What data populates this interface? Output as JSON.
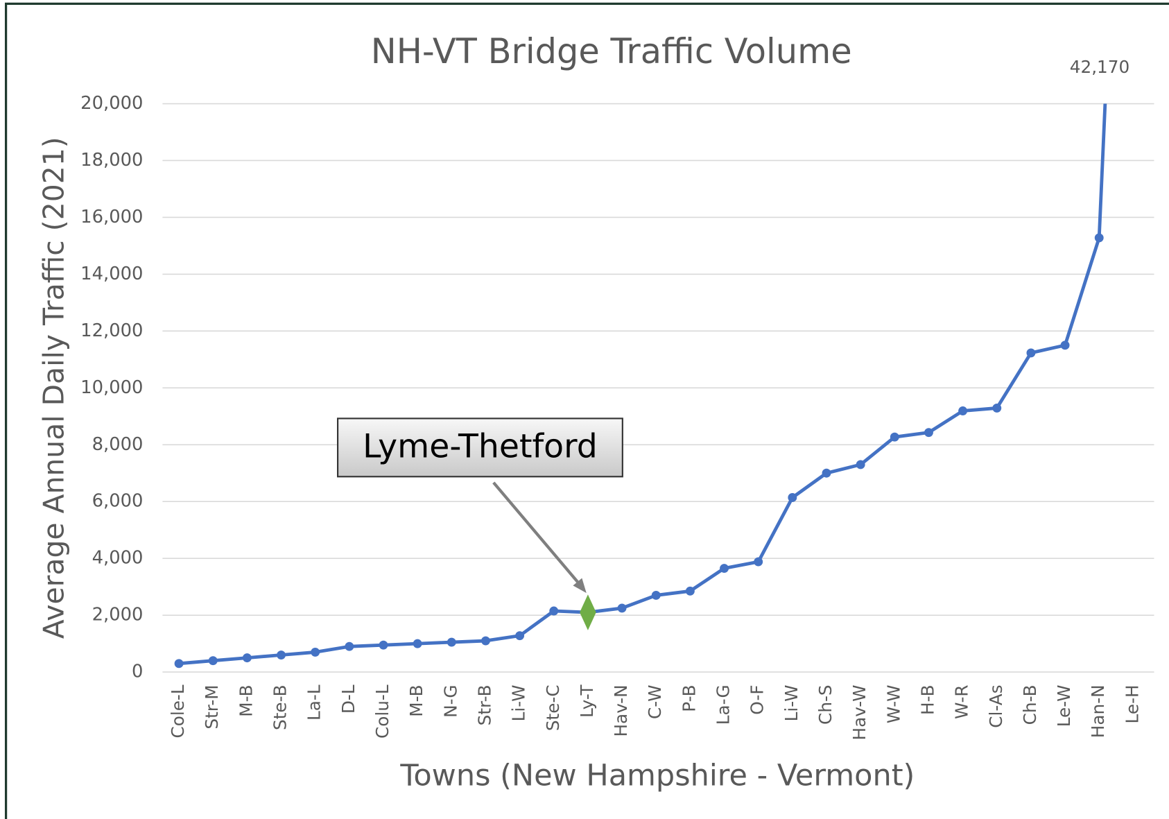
{
  "chart_data": {
    "type": "line",
    "title": "NH-VT Bridge Traffic Volume",
    "xlabel": "Towns  (New Hampshire - Vermont)",
    "ylabel": "Average Annual Daily Traffic (2021)",
    "categories": [
      "Cole-L",
      "Str-M",
      "M-B",
      "Ste-B",
      "La-L",
      "D-L",
      "Colu-L",
      "M-B",
      "N-G",
      "Str-B",
      "Li-W",
      "Ste-C",
      "Ly-T",
      "Hav-N",
      "C-W",
      "P-B",
      "La-G",
      "O-F",
      "Li-W",
      "Ch-S",
      "Hav-W",
      "W-W",
      "H-B",
      "W-R",
      "Cl-As",
      "Ch-B",
      "Le-W",
      "Han-N",
      "Le-H"
    ],
    "series": [
      {
        "name": "Average Annual Daily Traffic",
        "color": "#4472c4",
        "values": [
          300,
          400,
          500,
          600,
          700,
          900,
          950,
          1000,
          1050,
          1100,
          1280,
          2150,
          2100,
          2250,
          2700,
          2850,
          3650,
          3880,
          6140,
          7000,
          7300,
          8270,
          8430,
          9190,
          9290,
          11230,
          11500,
          15280,
          42170
        ],
        "value_labels": [
          null,
          null,
          null,
          null,
          null,
          null,
          null,
          null,
          null,
          null,
          null,
          null,
          null,
          null,
          null,
          null,
          null,
          null,
          null,
          null,
          null,
          null,
          null,
          null,
          null,
          null,
          null,
          null,
          "42,170"
        ]
      }
    ],
    "highlight": {
      "index": 12,
      "color": "#70ad47",
      "marker": "diamond",
      "annotation": "Lyme-Thetford"
    },
    "ylim": [
      0,
      20000
    ],
    "yticks": [
      0,
      {
        "value": 2000,
        "label": "2,000"
      },
      {
        "value": 4000,
        "label": "4,000"
      },
      {
        "value": 6000,
        "label": "6,000"
      },
      {
        "value": 8000,
        "label": "8,000"
      },
      {
        "value": 10000,
        "label": "10,000"
      },
      {
        "value": 12000,
        "label": "12,000"
      },
      {
        "value": 14000,
        "label": "14,000"
      },
      {
        "value": 16000,
        "label": "16,000"
      },
      {
        "value": 18000,
        "label": "18,000"
      },
      {
        "value": 20000,
        "label": "20,000"
      }
    ],
    "grid": true
  }
}
